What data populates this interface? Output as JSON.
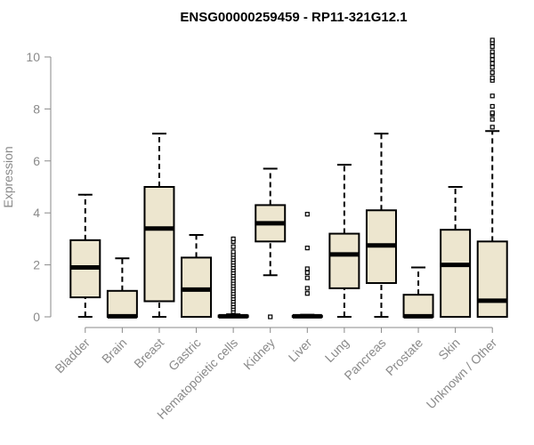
{
  "chart_data": {
    "type": "boxplot",
    "title": "ENSG00000259459 - RP11-321G12.1",
    "ylabel": "Expression",
    "xlabel": "",
    "ylim": [
      0,
      10.5
    ],
    "yticks": [
      0,
      2,
      4,
      6,
      8,
      10
    ],
    "box_fill": "#ede6cf",
    "box_stroke": "#000000",
    "axis_color": "#8a8a8a",
    "categories": [
      "Bladder",
      "Brain",
      "Breast",
      "Gastric",
      "Hematopoietic cells",
      "Kidney",
      "Liver",
      "Lung",
      "Pancreas",
      "Prostate",
      "Skin",
      "Unknown / Other"
    ],
    "boxes": [
      {
        "category": "Bladder",
        "whisker_low": 0,
        "q1": 0.75,
        "median": 1.9,
        "q3": 2.95,
        "whisker_high": 4.7,
        "outliers": []
      },
      {
        "category": "Brain",
        "whisker_low": 0,
        "q1": 0,
        "median": 0.02,
        "q3": 1.0,
        "whisker_high": 2.25,
        "outliers": []
      },
      {
        "category": "Breast",
        "whisker_low": 0,
        "q1": 0.6,
        "median": 3.4,
        "q3": 5.0,
        "whisker_high": 7.05,
        "outliers": []
      },
      {
        "category": "Gastric",
        "whisker_low": 0,
        "q1": 0,
        "median": 1.05,
        "q3": 2.28,
        "whisker_high": 3.15,
        "outliers": []
      },
      {
        "category": "Hematopoietic cells",
        "whisker_low": 0,
        "q1": 0,
        "median": 0.02,
        "q3": 0.05,
        "whisker_high": 0.1,
        "outliers": [
          0.2,
          0.3,
          0.4,
          0.5,
          0.6,
          0.7,
          0.8,
          0.9,
          1.0,
          1.1,
          1.2,
          1.3,
          1.4,
          1.5,
          1.6,
          1.7,
          1.8,
          1.9,
          2.0,
          2.1,
          2.2,
          2.3,
          2.4,
          2.5,
          2.7,
          2.9,
          3.0
        ]
      },
      {
        "category": "Kidney",
        "whisker_low": 1.6,
        "q1": 2.9,
        "median": 3.6,
        "q3": 4.3,
        "whisker_high": 5.7,
        "outliers": [
          0
        ]
      },
      {
        "category": "Liver",
        "whisker_low": 0,
        "q1": 0,
        "median": 0.02,
        "q3": 0.04,
        "whisker_high": 0.08,
        "outliers": [
          0.9,
          1.1,
          1.5,
          1.7,
          1.85,
          2.65,
          3.95
        ]
      },
      {
        "category": "Lung",
        "whisker_low": 0,
        "q1": 1.1,
        "median": 2.4,
        "q3": 3.2,
        "whisker_high": 5.85,
        "outliers": []
      },
      {
        "category": "Pancreas",
        "whisker_low": 0,
        "q1": 1.3,
        "median": 2.75,
        "q3": 4.1,
        "whisker_high": 7.05,
        "outliers": []
      },
      {
        "category": "Prostate",
        "whisker_low": 0,
        "q1": 0,
        "median": 0.02,
        "q3": 0.85,
        "whisker_high": 1.9,
        "outliers": []
      },
      {
        "category": "Skin",
        "whisker_low": 0,
        "q1": 0,
        "median": 2.0,
        "q3": 3.35,
        "whisker_high": 5.0,
        "outliers": []
      },
      {
        "category": "Unknown / Other",
        "whisker_low": 0,
        "q1": 0,
        "median": 0.62,
        "q3": 2.9,
        "whisker_high": 7.15,
        "outliers": [
          7.3,
          7.6,
          7.8,
          7.85,
          8.1,
          8.5,
          9.1,
          9.2,
          9.4,
          9.6,
          9.75,
          9.9,
          10.05,
          10.2,
          10.4,
          10.55,
          10.65
        ]
      }
    ]
  }
}
